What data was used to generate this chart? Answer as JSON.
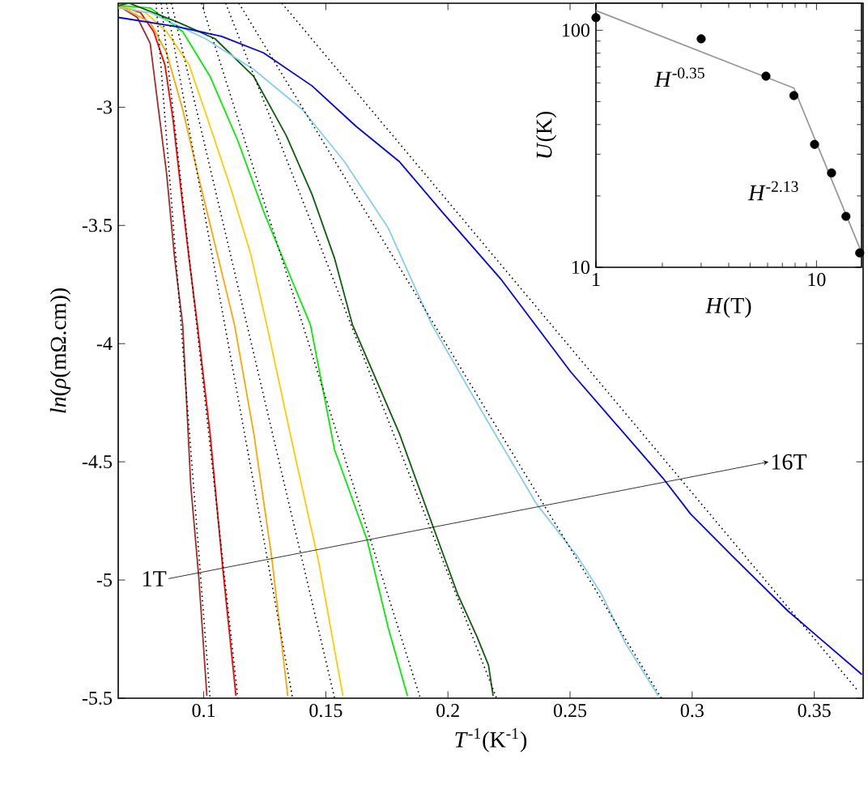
{
  "chart_data": [
    {
      "type": "line",
      "xlabel": "*T*$^{-1}$(K$^{-1}$)",
      "ylabel": "*ln*(*ρ*(mΩ.cm))",
      "xlim": [
        0.065,
        0.37
      ],
      "ylim": [
        -5.5,
        -2.56
      ],
      "xticks": [
        0.1,
        0.15,
        0.2,
        0.25,
        0.3,
        0.35
      ],
      "yticks": [
        -3,
        -3.5,
        -4,
        -4.5,
        -5,
        -5.5
      ],
      "marker": "none",
      "line_style": "solid",
      "series": [
        {
          "color": "#a52a2a",
          "x": [
            0.065,
            0.0728,
            0.0781,
            0.0815,
            0.0848,
            0.0881,
            0.0914,
            0.0947,
            0.098,
            0.1013
          ],
          "values": [
            -2.57,
            -2.62,
            -2.73,
            -3.01,
            -3.28,
            -3.64,
            -3.92,
            -4.6,
            -4.99,
            -5.49
          ]
        },
        {
          "color": "#ff0000",
          "x": [
            0.065,
            0.0742,
            0.0795,
            0.0841,
            0.0874,
            0.0907,
            0.094,
            0.0974,
            0.1026,
            0.1079,
            0.1132
          ],
          "values": [
            -2.57,
            -2.6,
            -2.68,
            -2.82,
            -3.05,
            -3.35,
            -3.64,
            -3.92,
            -4.38,
            -4.96,
            -5.49
          ]
        },
        {
          "color": "#ffa500",
          "x": [
            0.065,
            0.0781,
            0.0848,
            0.0914,
            0.098,
            0.1046,
            0.1126,
            0.1205,
            0.1278,
            0.1344
          ],
          "values": [
            -2.57,
            -2.64,
            -2.77,
            -3.01,
            -3.3,
            -3.58,
            -3.92,
            -4.38,
            -4.9,
            -5.49
          ]
        },
        {
          "color": "#ffcc00",
          "x": [
            0.065,
            0.0762,
            0.0848,
            0.094,
            0.1026,
            0.1113,
            0.1192,
            0.1258,
            0.1358,
            0.147,
            0.157
          ],
          "values": [
            -2.57,
            -2.6,
            -2.68,
            -2.82,
            -3.08,
            -3.35,
            -3.62,
            -3.92,
            -4.4,
            -4.92,
            -5.49
          ]
        },
        {
          "color": "#00ee00",
          "x": [
            0.065,
            0.0781,
            0.0914,
            0.1026,
            0.1139,
            0.1245,
            0.1344,
            0.1437,
            0.1536,
            0.1669,
            0.1755,
            0.1834
          ],
          "values": [
            -2.57,
            -2.58,
            -2.68,
            -2.87,
            -3.14,
            -3.44,
            -3.69,
            -3.92,
            -4.45,
            -4.83,
            -5.2,
            -5.49
          ]
        },
        {
          "color": "#0b5e0b",
          "x": [
            0.065,
            0.0695,
            0.0894,
            0.1046,
            0.1205,
            0.1338,
            0.1444,
            0.1536,
            0.1609,
            0.1801,
            0.1934,
            0.204,
            0.2119,
            0.2166,
            0.2185
          ],
          "values": [
            -2.57,
            -2.56,
            -2.64,
            -2.71,
            -2.87,
            -3.12,
            -3.37,
            -3.64,
            -3.92,
            -4.38,
            -4.76,
            -5.06,
            -5.24,
            -5.36,
            -5.49
          ]
        },
        {
          "color": "#87ceeb",
          "x": [
            0.065,
            0.0781,
            0.1007,
            0.1205,
            0.1404,
            0.1576,
            0.1755,
            0.1934,
            0.2152,
            0.2364,
            0.253,
            0.2629,
            0.2728,
            0.2861
          ],
          "values": [
            -2.58,
            -2.6,
            -2.71,
            -2.84,
            -3.01,
            -3.23,
            -3.51,
            -3.92,
            -4.31,
            -4.68,
            -4.9,
            -5.06,
            -5.27,
            -5.49
          ]
        },
        {
          "color": "#0000ff",
          "x": [
            0.065,
            0.0894,
            0.1073,
            0.1245,
            0.1444,
            0.1623,
            0.1801,
            0.1974,
            0.2219,
            0.2503,
            0.2881,
            0.2993,
            0.3166,
            0.3391,
            0.3695
          ],
          "values": [
            -2.62,
            -2.66,
            -2.7,
            -2.77,
            -2.91,
            -3.08,
            -3.23,
            -3.44,
            -3.73,
            -4.12,
            -4.57,
            -4.72,
            -4.9,
            -5.13,
            -5.4
          ]
        },
        {
          "color": "#000000",
          "line_style": "dotted",
          "x": [
            0.0805,
            0.1026
          ],
          "values": [
            -2.56,
            -5.5
          ]
        },
        {
          "color": "#000000",
          "line_style": "dotted",
          "x": [
            0.0826,
            0.114
          ],
          "values": [
            -2.56,
            -5.5
          ]
        },
        {
          "color": "#000000",
          "line_style": "dotted",
          "x": [
            0.0847,
            0.1364
          ],
          "values": [
            -2.56,
            -5.5
          ]
        },
        {
          "color": "#000000",
          "line_style": "dotted",
          "x": [
            0.0868,
            0.1536
          ],
          "values": [
            -2.56,
            -5.5
          ]
        },
        {
          "color": "#000000",
          "line_style": "dotted",
          "x": [
            0.0991,
            0.1887
          ],
          "values": [
            -2.56,
            -5.5
          ]
        },
        {
          "color": "#000000",
          "line_style": "dotted",
          "x": [
            0.109,
            0.2199
          ],
          "values": [
            -2.56,
            -5.5
          ]
        },
        {
          "color": "#000000",
          "line_style": "dotted",
          "x": [
            0.1144,
            0.2874
          ],
          "values": [
            -2.56,
            -5.5
          ]
        },
        {
          "color": "#000000",
          "line_style": "dotted",
          "x": [
            0.132,
            0.368
          ],
          "values": [
            -2.56,
            -5.47
          ]
        }
      ],
      "annotations": [
        "1T",
        "16T"
      ]
    },
    {
      "type": "scatter",
      "xlabel": "*H*(T)",
      "ylabel": "*U*(K)",
      "log": "xy",
      "xlim": [
        1,
        16
      ],
      "ylim": [
        10,
        130
      ],
      "xticks": [
        1,
        10
      ],
      "yticks": [
        10,
        100
      ],
      "marker": "circle",
      "series": [
        {
          "color": "#000000",
          "x": [
            1,
            3.0,
            5.9,
            7.9,
            9.8,
            11.7,
            13.6,
            15.7
          ],
          "values": [
            113,
            92,
            64,
            53,
            33,
            25,
            16.4,
            11.5
          ]
        },
        {
          "type": "line",
          "marker": "none",
          "color": "#999999",
          "x": [
            1,
            7.9,
            15.8
          ],
          "values": [
            121,
            57,
            11.9
          ]
        }
      ],
      "annotations": [
        "*H*$^{-0.35}$",
        "*H*$^{-2.13}$"
      ]
    }
  ]
}
